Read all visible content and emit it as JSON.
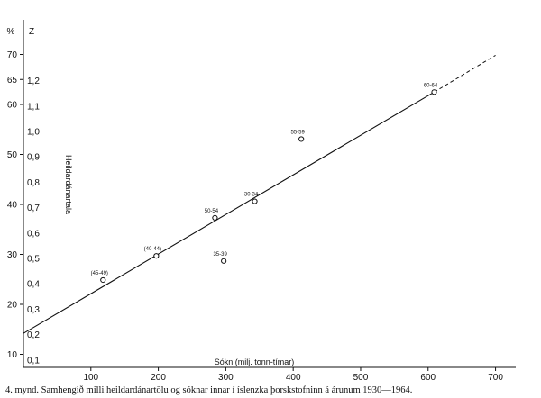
{
  "chart_data": {
    "type": "scatter",
    "title": "",
    "caption": "4. mynd.  Samhengið milli heildardánartölu og sóknar innar í íslenzka þorskstofninn á árunum 1930—1964.",
    "xlabel": "Sókn (milj. tonn-tímar)",
    "ylabel": "Heildardánartala",
    "y_left_unit": "%",
    "y_right_unit": "Z",
    "xlim": [
      0,
      730
    ],
    "x_ticks": [
      "100",
      "200",
      "300",
      "400",
      "500",
      "600",
      "700"
    ],
    "y_left_ticks": [
      "10",
      "20",
      "30",
      "40",
      "50",
      "60",
      "65",
      "70"
    ],
    "y_right_ticks": [
      "0,1",
      "0,2",
      "0,3",
      "0,4",
      "0,5",
      "0,6",
      "0,7",
      "0,8",
      "0,9",
      "1,0",
      "1,1",
      "1,2"
    ],
    "grid": false,
    "legend": "none",
    "series": [
      {
        "points": [
          {
            "label": "(45-49)",
            "x": 118,
            "z": 0.415
          },
          {
            "label": "(40-44)",
            "x": 197,
            "z": 0.51
          },
          {
            "label": "50-54",
            "x": 284,
            "z": 0.66
          },
          {
            "label": "35-39",
            "x": 297,
            "z": 0.49
          },
          {
            "label": "30-34",
            "x": 343,
            "z": 0.725
          },
          {
            "label": "55-59",
            "x": 412,
            "z": 0.97
          },
          {
            "label": "60-64",
            "x": 609,
            "z": 1.155
          }
        ]
      }
    ],
    "fit_line": {
      "style": "solid",
      "from": {
        "x": 0,
        "z": 0.205
      },
      "to": {
        "x": 609,
        "z": 1.155
      },
      "extension": {
        "style": "dashed",
        "to": {
          "x": 700,
          "z": 1.3
        }
      }
    }
  }
}
